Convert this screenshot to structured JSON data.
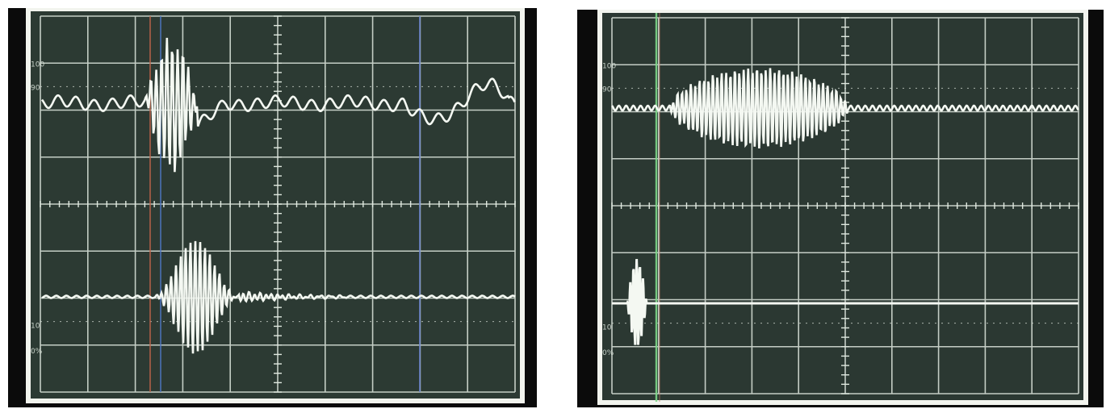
{
  "photos": [
    {
      "graticule_labels": [
        "100",
        "90",
        "10",
        "0%"
      ],
      "colors": {
        "screen": "#2c3a33",
        "grid": "#dfe8df",
        "trace": "#f4f8f2"
      },
      "traces": [
        "upper-trace",
        "lower-trace"
      ]
    },
    {
      "graticule_labels": [
        "100",
        "90",
        "10",
        "0%"
      ],
      "colors": {
        "screen": "#2b3832",
        "grid": "#dfe8df",
        "trace": "#f4f8f2",
        "cursor": "#7fd98a"
      },
      "traces": [
        "upper-trace",
        "lower-trace"
      ]
    }
  ]
}
